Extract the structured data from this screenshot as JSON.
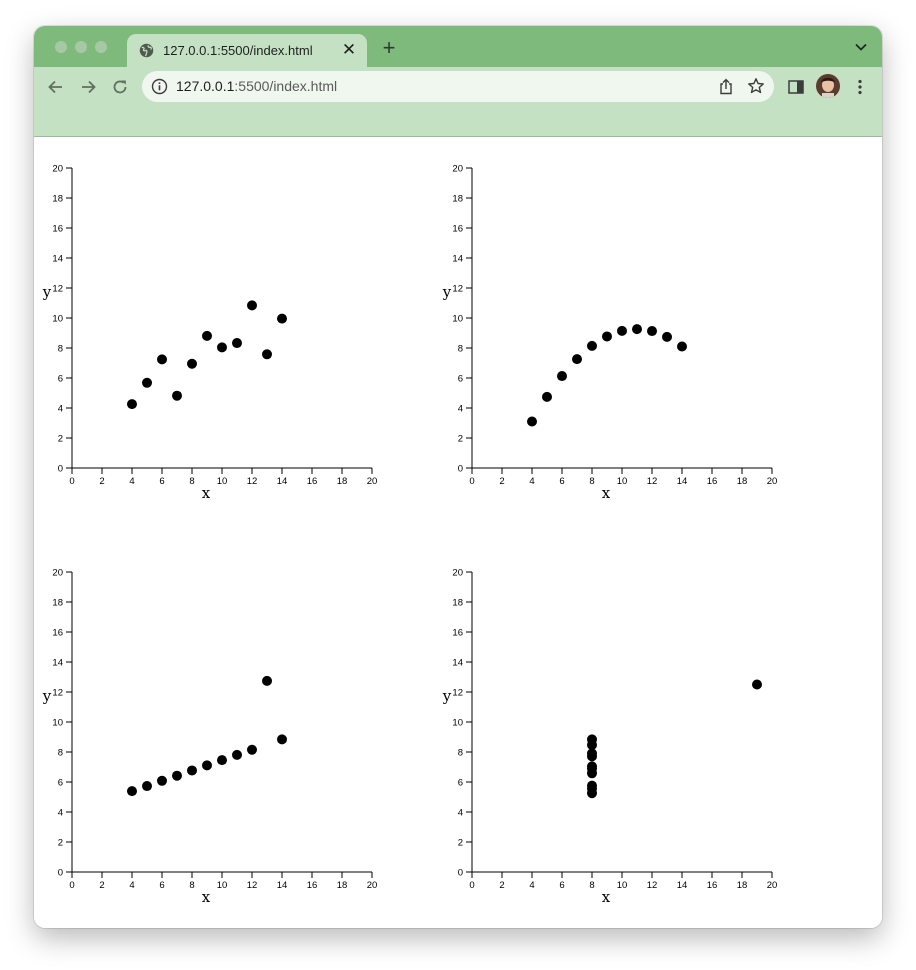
{
  "browser": {
    "tab_title": "127.0.0.1:5500/index.html",
    "tab_close_glyph": "✕",
    "new_tab_glyph": "+",
    "url_host": "127.0.0.1",
    "url_rest": ":5500/index.html",
    "icons": [
      "globe-icon",
      "close-icon",
      "plus-icon",
      "chevron-down-icon",
      "back-arrow-icon",
      "forward-arrow-icon",
      "reload-icon",
      "info-icon",
      "share-icon",
      "star-icon",
      "sidepanel-icon",
      "avatar",
      "kebab-menu-icon"
    ],
    "colors": {
      "frame": "#7fba7d",
      "toolbar": "#c5e1c4",
      "omnibox": "#f0f7ef"
    }
  },
  "chart_data": [
    {
      "type": "scatter",
      "xlabel": "x",
      "ylabel": "y",
      "xlim": [
        0,
        20
      ],
      "ylim": [
        0,
        20
      ],
      "xticks": [
        0,
        2,
        4,
        6,
        8,
        10,
        12,
        14,
        16,
        18,
        20
      ],
      "yticks": [
        0,
        2,
        4,
        6,
        8,
        10,
        12,
        14,
        16,
        18,
        20
      ],
      "grid": false,
      "points": [
        [
          10,
          8.04
        ],
        [
          8,
          6.95
        ],
        [
          13,
          7.58
        ],
        [
          9,
          8.81
        ],
        [
          11,
          8.33
        ],
        [
          14,
          9.96
        ],
        [
          6,
          7.24
        ],
        [
          4,
          4.26
        ],
        [
          12,
          10.84
        ],
        [
          7,
          4.82
        ],
        [
          5,
          5.68
        ]
      ]
    },
    {
      "type": "scatter",
      "xlabel": "x",
      "ylabel": "y",
      "xlim": [
        0,
        20
      ],
      "ylim": [
        0,
        20
      ],
      "xticks": [
        0,
        2,
        4,
        6,
        8,
        10,
        12,
        14,
        16,
        18,
        20
      ],
      "yticks": [
        0,
        2,
        4,
        6,
        8,
        10,
        12,
        14,
        16,
        18,
        20
      ],
      "grid": false,
      "points": [
        [
          10,
          9.14
        ],
        [
          8,
          8.14
        ],
        [
          13,
          8.74
        ],
        [
          9,
          8.77
        ],
        [
          11,
          9.26
        ],
        [
          14,
          8.1
        ],
        [
          6,
          6.13
        ],
        [
          4,
          3.1
        ],
        [
          12,
          9.13
        ],
        [
          7,
          7.26
        ],
        [
          5,
          4.74
        ]
      ]
    },
    {
      "type": "scatter",
      "xlabel": "x",
      "ylabel": "y",
      "xlim": [
        0,
        20
      ],
      "ylim": [
        0,
        20
      ],
      "xticks": [
        0,
        2,
        4,
        6,
        8,
        10,
        12,
        14,
        16,
        18,
        20
      ],
      "yticks": [
        0,
        2,
        4,
        6,
        8,
        10,
        12,
        14,
        16,
        18,
        20
      ],
      "grid": false,
      "points": [
        [
          10,
          7.46
        ],
        [
          8,
          6.77
        ],
        [
          13,
          12.74
        ],
        [
          9,
          7.11
        ],
        [
          11,
          7.81
        ],
        [
          14,
          8.84
        ],
        [
          6,
          6.08
        ],
        [
          4,
          5.39
        ],
        [
          12,
          8.15
        ],
        [
          7,
          6.42
        ],
        [
          5,
          5.73
        ]
      ]
    },
    {
      "type": "scatter",
      "xlabel": "x",
      "ylabel": "y",
      "xlim": [
        0,
        20
      ],
      "ylim": [
        0,
        20
      ],
      "xticks": [
        0,
        2,
        4,
        6,
        8,
        10,
        12,
        14,
        16,
        18,
        20
      ],
      "yticks": [
        0,
        2,
        4,
        6,
        8,
        10,
        12,
        14,
        16,
        18,
        20
      ],
      "grid": false,
      "points": [
        [
          8,
          6.58
        ],
        [
          8,
          5.76
        ],
        [
          8,
          7.71
        ],
        [
          8,
          8.84
        ],
        [
          8,
          8.47
        ],
        [
          8,
          7.04
        ],
        [
          8,
          5.25
        ],
        [
          19,
          12.5
        ],
        [
          8,
          5.56
        ],
        [
          8,
          7.91
        ],
        [
          8,
          6.89
        ]
      ]
    }
  ]
}
